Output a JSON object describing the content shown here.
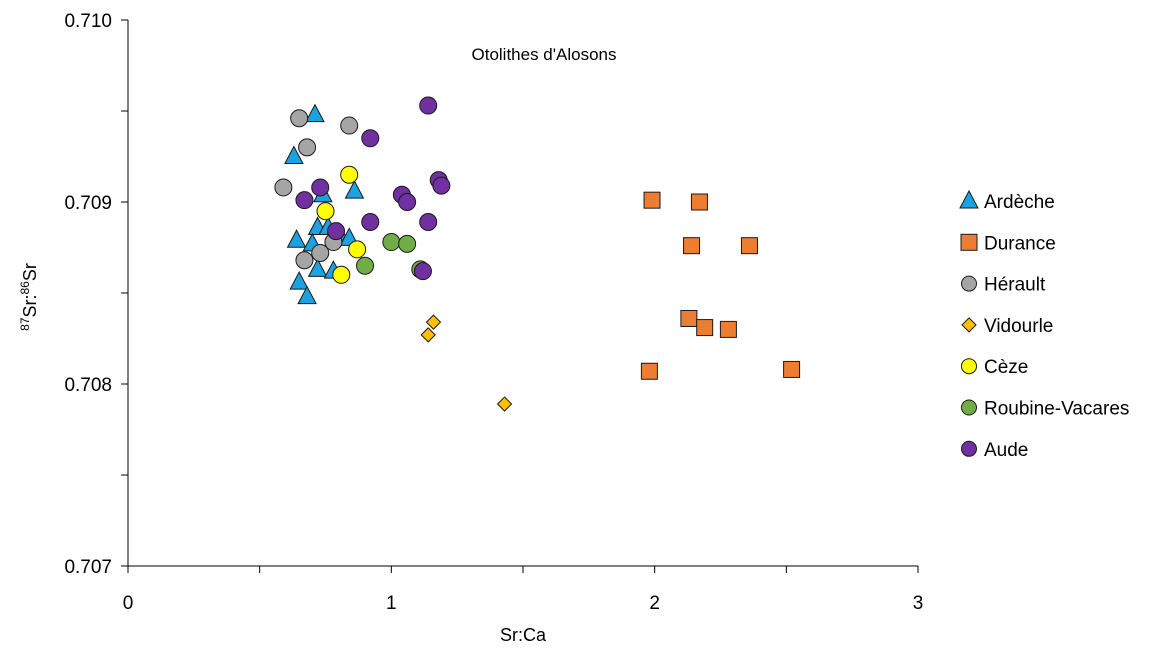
{
  "chart_data": {
    "type": "scatter",
    "title": "Otolithes d'Alosons",
    "xlabel": "Sr:Ca",
    "ylabel": {
      "sup1": "87",
      "mid": "Sr:",
      "sup2": "86",
      "end": "Sr"
    },
    "xlim": [
      0,
      3
    ],
    "ylim": [
      0.707,
      0.71
    ],
    "x_ticks": [
      "0",
      "1",
      "2",
      "3"
    ],
    "y_ticks": [
      "0.707",
      "0.708",
      "0.709",
      "0.710"
    ],
    "grid": false,
    "legend": "right",
    "series": [
      {
        "name": "Ardèche",
        "marker": "triangle",
        "color": "#1aa3e0",
        "points": [
          [
            0.71,
            0.70948
          ],
          [
            0.63,
            0.70925
          ],
          [
            0.74,
            0.70904
          ],
          [
            0.86,
            0.70906
          ],
          [
            0.72,
            0.70886
          ],
          [
            0.76,
            0.70886
          ],
          [
            0.64,
            0.70879
          ],
          [
            0.7,
            0.70877
          ],
          [
            0.8,
            0.70883
          ],
          [
            0.84,
            0.7088
          ],
          [
            0.72,
            0.70863
          ],
          [
            0.78,
            0.70862
          ],
          [
            0.65,
            0.70856
          ],
          [
            0.68,
            0.70848
          ]
        ]
      },
      {
        "name": "Durance",
        "marker": "square",
        "color": "#ed7d31",
        "points": [
          [
            1.99,
            0.70901
          ],
          [
            2.17,
            0.709
          ],
          [
            2.14,
            0.70876
          ],
          [
            2.36,
            0.70876
          ],
          [
            2.13,
            0.70836
          ],
          [
            2.19,
            0.70831
          ],
          [
            2.28,
            0.7083
          ],
          [
            1.98,
            0.70807
          ],
          [
            2.52,
            0.70808
          ]
        ]
      },
      {
        "name": "Hérault",
        "marker": "circle",
        "color": "#a5a5a5",
        "points": [
          [
            0.65,
            0.70946
          ],
          [
            0.84,
            0.70942
          ],
          [
            0.68,
            0.7093
          ],
          [
            0.59,
            0.70908
          ],
          [
            0.78,
            0.70878
          ],
          [
            0.73,
            0.70872
          ],
          [
            0.67,
            0.70868
          ]
        ]
      },
      {
        "name": "Vidourle",
        "marker": "diamond",
        "color": "#ffc000",
        "points": [
          [
            1.16,
            0.70834
          ],
          [
            1.14,
            0.70827
          ],
          [
            1.43,
            0.70789
          ]
        ]
      },
      {
        "name": "Cèze",
        "marker": "circle",
        "color": "#ffff00",
        "points": [
          [
            0.84,
            0.70915
          ],
          [
            0.75,
            0.70895
          ],
          [
            0.87,
            0.70874
          ],
          [
            0.81,
            0.7086
          ]
        ]
      },
      {
        "name": "Roubine-Vacares",
        "marker": "circle",
        "color": "#70ad47",
        "points": [
          [
            1.0,
            0.70878
          ],
          [
            1.06,
            0.70877
          ],
          [
            0.9,
            0.70865
          ],
          [
            1.11,
            0.70863
          ]
        ]
      },
      {
        "name": "Aude",
        "marker": "circle",
        "color": "#7030a0",
        "points": [
          [
            1.14,
            0.70953
          ],
          [
            0.92,
            0.70935
          ],
          [
            1.18,
            0.70912
          ],
          [
            1.19,
            0.70909
          ],
          [
            0.73,
            0.70908
          ],
          [
            1.04,
            0.70904
          ],
          [
            0.67,
            0.70901
          ],
          [
            1.06,
            0.709
          ],
          [
            0.92,
            0.70889
          ],
          [
            1.14,
            0.70889
          ],
          [
            0.79,
            0.70884
          ],
          [
            1.12,
            0.70862
          ]
        ]
      }
    ]
  }
}
